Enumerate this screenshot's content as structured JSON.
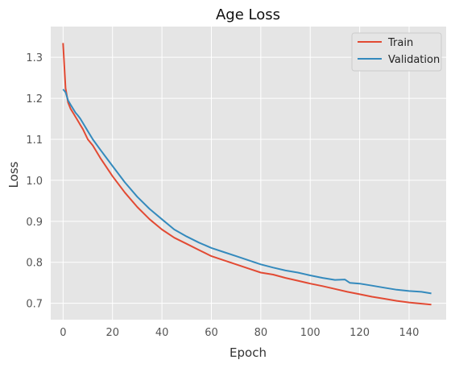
{
  "chart_data": {
    "type": "line",
    "title": "Age Loss",
    "xlabel": "Epoch",
    "ylabel": "Loss",
    "xlim": [
      -5,
      155
    ],
    "ylim": [
      0.66,
      1.375
    ],
    "xticks": [
      0,
      20,
      40,
      60,
      80,
      100,
      120,
      140
    ],
    "yticks": [
      0.7,
      0.8,
      0.9,
      1.0,
      1.1,
      1.2,
      1.3
    ],
    "grid": true,
    "legend_position": "top-right",
    "series": [
      {
        "name": "Train",
        "color": "#E24A33",
        "x": [
          0,
          1,
          2,
          3,
          4,
          5,
          6,
          7,
          8,
          10,
          12,
          15,
          20,
          25,
          30,
          35,
          40,
          45,
          50,
          55,
          60,
          65,
          70,
          75,
          80,
          85,
          90,
          95,
          100,
          105,
          110,
          115,
          120,
          125,
          130,
          135,
          140,
          145,
          149
        ],
        "values": [
          1.335,
          1.225,
          1.19,
          1.175,
          1.165,
          1.155,
          1.145,
          1.135,
          1.125,
          1.1,
          1.085,
          1.055,
          1.01,
          0.97,
          0.935,
          0.905,
          0.88,
          0.86,
          0.845,
          0.83,
          0.815,
          0.805,
          0.795,
          0.785,
          0.775,
          0.77,
          0.762,
          0.755,
          0.748,
          0.742,
          0.735,
          0.728,
          0.722,
          0.716,
          0.711,
          0.706,
          0.702,
          0.699,
          0.697
        ]
      },
      {
        "name": "Validation",
        "color": "#348ABD",
        "x": [
          0,
          1,
          2,
          3,
          4,
          5,
          6,
          7,
          8,
          10,
          12,
          15,
          20,
          25,
          30,
          35,
          40,
          45,
          50,
          55,
          60,
          65,
          70,
          75,
          80,
          85,
          90,
          95,
          100,
          105,
          110,
          114,
          116,
          120,
          125,
          130,
          135,
          140,
          145,
          149
        ],
        "values": [
          1.222,
          1.215,
          1.195,
          1.185,
          1.175,
          1.165,
          1.158,
          1.15,
          1.14,
          1.12,
          1.1,
          1.075,
          1.035,
          0.995,
          0.96,
          0.93,
          0.905,
          0.88,
          0.863,
          0.848,
          0.835,
          0.825,
          0.815,
          0.805,
          0.795,
          0.787,
          0.78,
          0.775,
          0.768,
          0.762,
          0.757,
          0.758,
          0.75,
          0.748,
          0.743,
          0.738,
          0.733,
          0.73,
          0.728,
          0.724
        ]
      }
    ]
  }
}
